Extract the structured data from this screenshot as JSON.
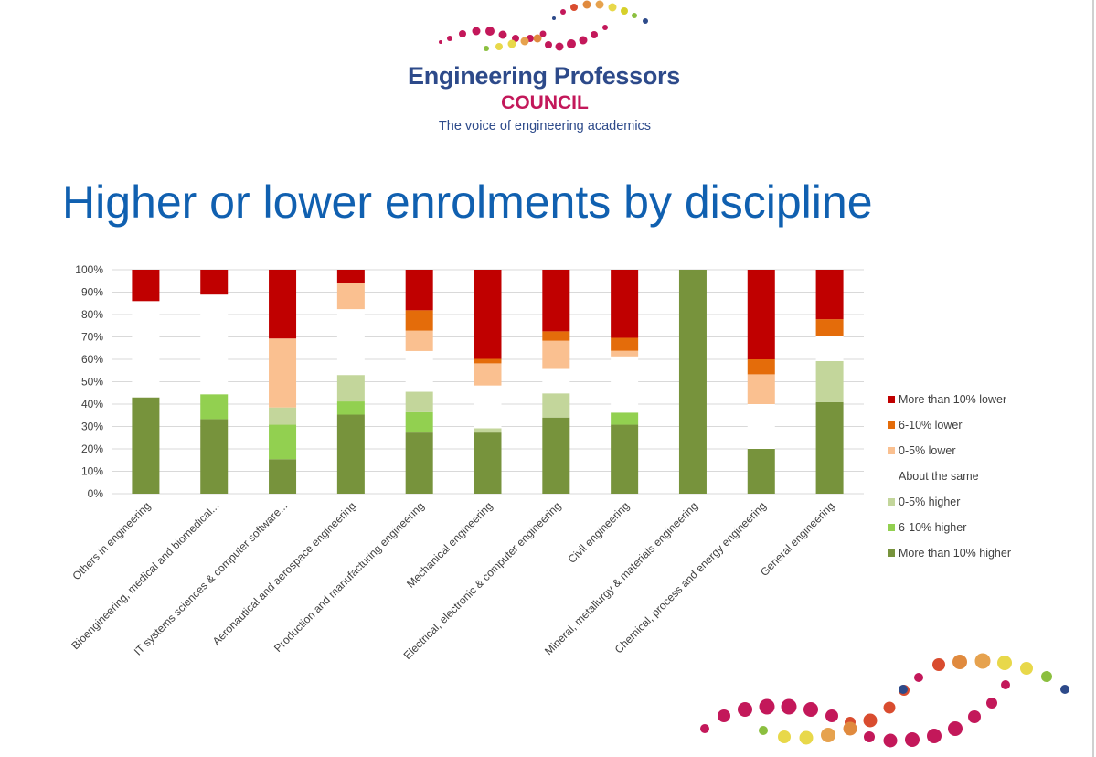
{
  "logo": {
    "title": "Engineering Professors",
    "council": "COUNCIL",
    "tagline": "The voice of engineering academics",
    "colors": {
      "navy": "#2d4a8a",
      "magenta": "#c3185a"
    }
  },
  "slide": {
    "title": "Higher or lower enrolments by discipline"
  },
  "chart_data": {
    "type": "bar",
    "stacked": true,
    "title": "",
    "xlabel": "",
    "ylabel": "",
    "ylim": [
      0,
      100
    ],
    "y_ticks": [
      "0%",
      "10%",
      "20%",
      "30%",
      "40%",
      "50%",
      "60%",
      "70%",
      "80%",
      "90%",
      "100%"
    ],
    "grid": true,
    "legend_position": "right",
    "categories": [
      "Others in engineering",
      "Bioengineering, medical and biomedical...",
      "IT systems sciences & computer software...",
      "Aeronautical and aerospace engineering",
      "Production and manufacturing engineering",
      "Mechanical engineering",
      "Electrical, electronic & computer engineering",
      "Civil engineering",
      "Mineral, metallurgy & materials engineering",
      "Chemical, process and energy engineering",
      "General engineering"
    ],
    "series": [
      {
        "name": "More than 10% higher",
        "color": "#77933c",
        "values": [
          43,
          33.3,
          15.4,
          35.3,
          27.3,
          27.3,
          34,
          30.8,
          100,
          20,
          40.9
        ]
      },
      {
        "name": "6-10% higher",
        "color": "#92d050",
        "values": [
          0,
          11.1,
          15.4,
          5.9,
          9.1,
          0,
          0,
          5.4,
          0,
          0,
          0
        ]
      },
      {
        "name": "0-5% higher",
        "color": "#c3d69b",
        "values": [
          0,
          0,
          7.7,
          11.8,
          9.1,
          1.9,
          10.8,
          0,
          0,
          0,
          18.3
        ]
      },
      {
        "name": "About the same",
        "color": "#ffffff",
        "values": [
          43,
          44.5,
          0,
          29.4,
          18.2,
          19.1,
          10.9,
          25.1,
          0,
          20,
          11
        ]
      },
      {
        "name": "0-5% lower",
        "color": "#fac090",
        "values": [
          0,
          0,
          30.8,
          11.8,
          9.1,
          9.9,
          12.6,
          2.5,
          0,
          13.3,
          0.4
        ]
      },
      {
        "name": "6-10% lower",
        "color": "#e46c0a",
        "values": [
          0,
          0,
          0,
          0,
          9.1,
          2,
          4.2,
          5.8,
          0,
          6.7,
          7.3
        ]
      },
      {
        "name": "More than 10% lower",
        "color": "#c00000",
        "values": [
          14,
          11.1,
          30.7,
          5.8,
          18.1,
          39.8,
          27.5,
          30.4,
          0,
          40,
          22.1
        ]
      }
    ]
  }
}
